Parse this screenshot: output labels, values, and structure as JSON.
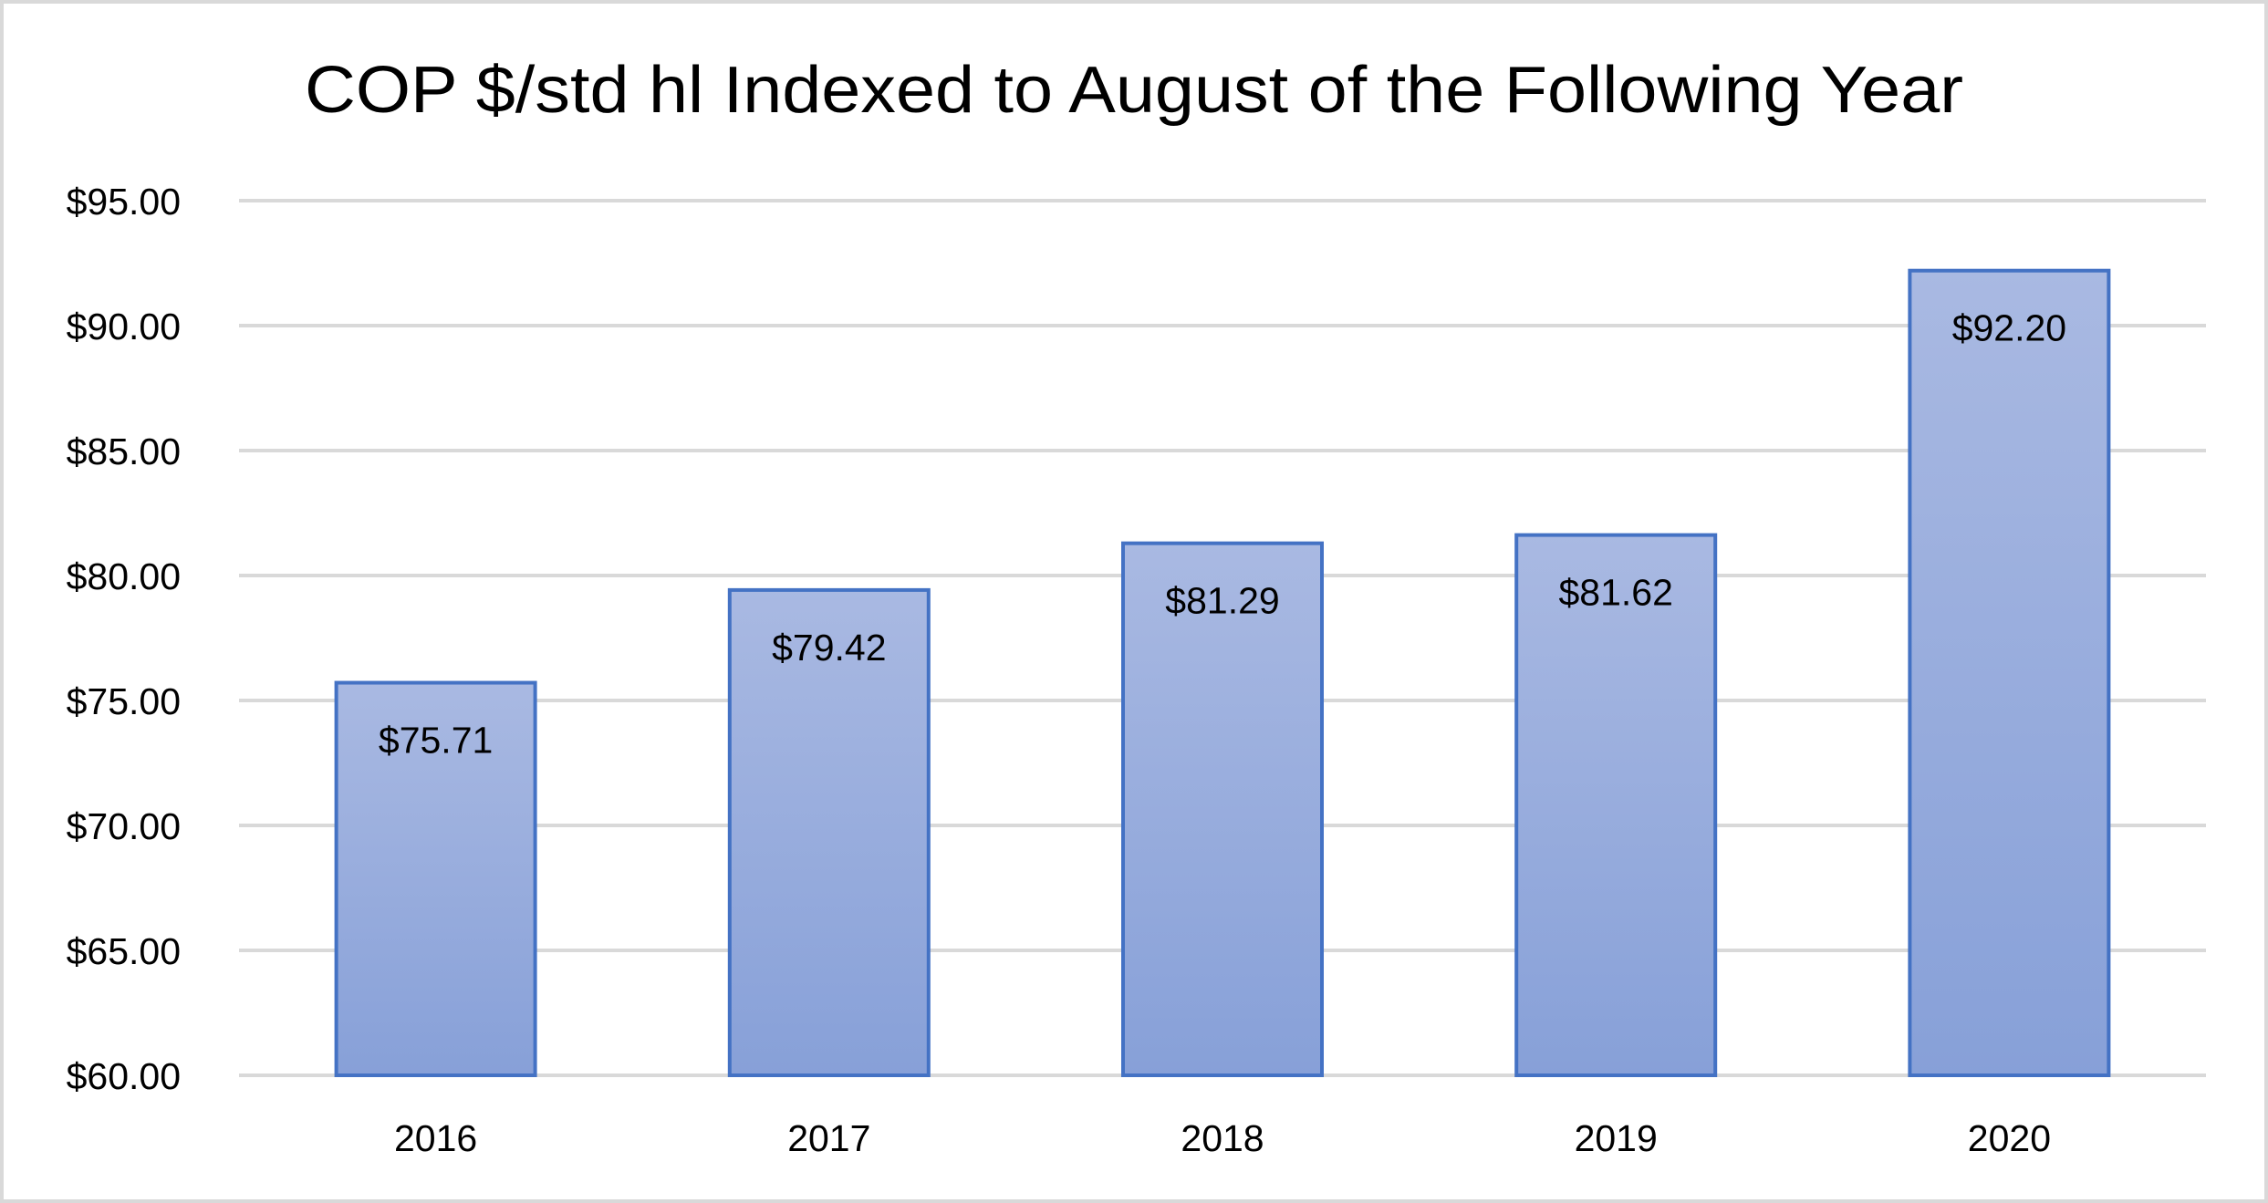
{
  "chart_data": {
    "type": "bar",
    "title": "COP $/std hl Indexed to August of the Following Year",
    "xlabel": "",
    "ylabel": "",
    "categories": [
      "2016",
      "2017",
      "2018",
      "2019",
      "2020"
    ],
    "values": [
      75.71,
      79.42,
      81.29,
      81.62,
      92.2
    ],
    "value_labels": [
      "$75.71",
      "$79.42",
      "$81.29",
      "$81.62",
      "$92.20"
    ],
    "ylim": [
      60,
      95
    ],
    "y_ticks": [
      60,
      65,
      70,
      75,
      80,
      85,
      90,
      95
    ],
    "y_tick_labels": [
      "$60.00",
      "$65.00",
      "$70.00",
      "$75.00",
      "$80.00",
      "$85.00",
      "$90.00",
      "$95.00"
    ],
    "grid": true,
    "legend": null,
    "data_labels_position": "inside_end"
  },
  "colors": {
    "bar_fill_top": "#a9b9e2",
    "bar_fill_bottom": "#87a0d8",
    "bar_border": "#4472c4",
    "gridline": "#d9d9d9",
    "frame_border": "#d9d9d9",
    "text": "#000000"
  }
}
